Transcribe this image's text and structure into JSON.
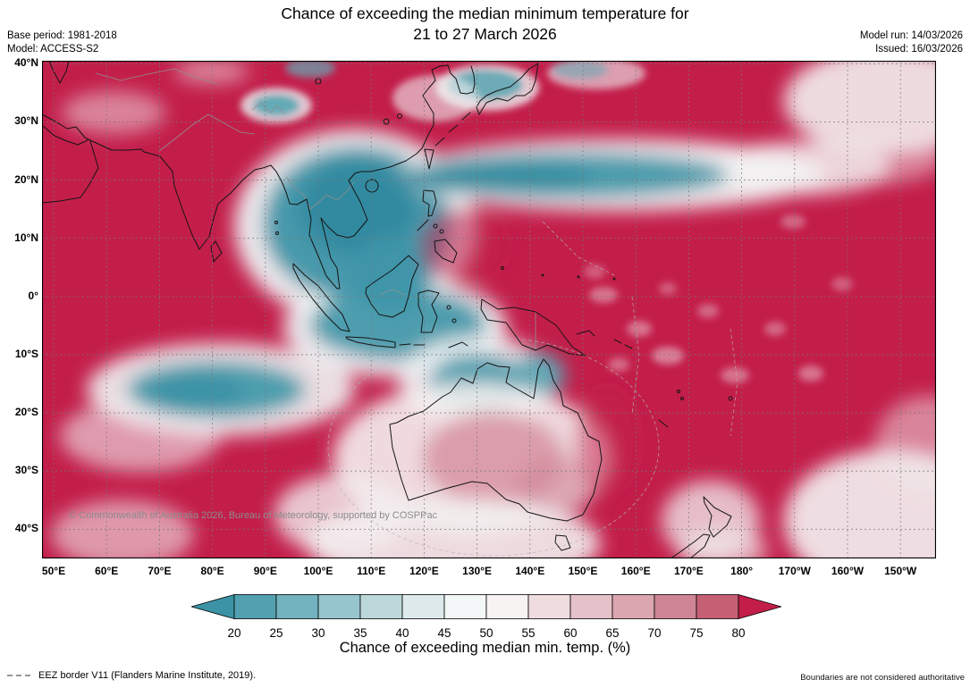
{
  "header": {
    "title_line1": "Chance of exceeding the median minimum temperature for",
    "title_line2": "21 to 27 March 2026",
    "base_period": "Base period: 1981-2018",
    "model": "Model: ACCESS-S2",
    "model_run": "Model run: 14/03/2026",
    "issued": "Issued: 16/03/2026"
  },
  "map": {
    "copyright": "© Commonwealth of Australia 2026, Bureau of Meteorology, supported by COSPPac",
    "lat_labels": [
      "40°N",
      "30°N",
      "20°N",
      "10°N",
      "0°",
      "10°S",
      "20°S",
      "30°S",
      "40°S"
    ],
    "lon_labels": [
      "50°E",
      "60°E",
      "70°E",
      "80°E",
      "90°E",
      "100°E",
      "110°E",
      "120°E",
      "130°E",
      "140°E",
      "150°E",
      "160°E",
      "170°E",
      "180°",
      "170°W",
      "160°W",
      "150°W"
    ],
    "palette": {
      "high_chance_red": "#c31e4a",
      "low_chance_teal": "#3f95a8"
    }
  },
  "colorbar": {
    "tick_labels": [
      "20",
      "25",
      "30",
      "35",
      "40",
      "45",
      "50",
      "55",
      "60",
      "65",
      "70",
      "75",
      "80"
    ],
    "arrow_low_color": "#3b93a5",
    "segment_colors": [
      "#52a1b0",
      "#73b3bf",
      "#97c5cd",
      "#bcd8db",
      "#dde9ea",
      "#f4f7f7",
      "#f8f3f3",
      "#eedcdf",
      "#e5c2c9",
      "#dba6b0",
      "#d08594",
      "#c55f74"
    ],
    "arrow_high_color": "#c31e4a",
    "caption": "Chance of exceeding median min. temp. (%)"
  },
  "footer": {
    "eez_label": "EEZ border V11 (Flanders Marine Institute, 2019).",
    "disclaimer": "Boundaries are not considered authoritative"
  }
}
